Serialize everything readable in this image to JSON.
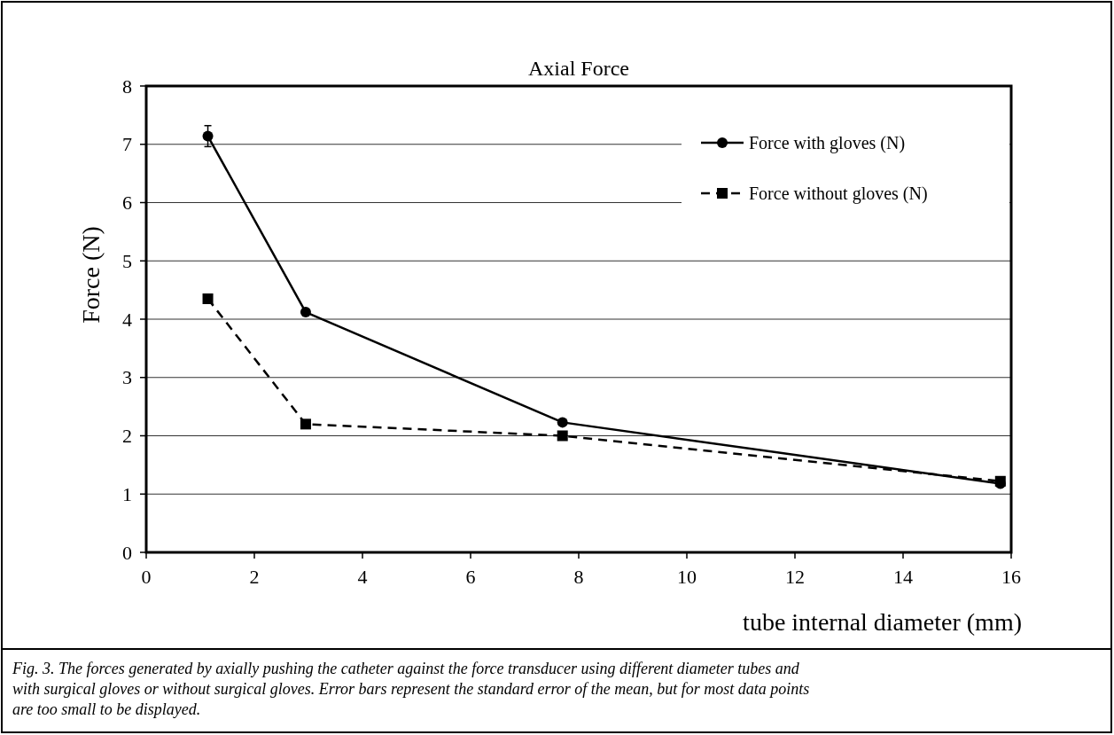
{
  "chart_data": {
    "type": "line",
    "title": "Axial Force",
    "xlabel": "tube internal diameter (mm)",
    "ylabel": "Force (N)",
    "xlim": [
      0,
      16
    ],
    "xticks": [
      0,
      2,
      4,
      6,
      8,
      10,
      12,
      14,
      16
    ],
    "ylim": [
      0,
      8
    ],
    "yticks": [
      0,
      1,
      2,
      3,
      4,
      5,
      6,
      7,
      8
    ],
    "grid": "y",
    "legend": "top right",
    "series": [
      {
        "name": "Force with gloves (N)",
        "color": "#000000",
        "x": [
          1.14,
          2.95,
          7.7,
          15.8
        ],
        "values": [
          7.14,
          4.12,
          2.23,
          1.18
        ],
        "errors": [
          0.18,
          null,
          null,
          null
        ],
        "marker": "circle",
        "line_style": "solid"
      },
      {
        "name": "Force without gloves (N)",
        "color": "#000000",
        "x": [
          1.14,
          2.95,
          7.7,
          15.8
        ],
        "values": [
          4.35,
          2.2,
          2.0,
          1.22
        ],
        "marker": "square",
        "line_style": "dashed"
      }
    ],
    "annotations": [
      "Fig. 3. The forces generated by axially pushing the catheter against the force transducer using different diameter tubes and with surgical gloves or without surgical gloves. Error bars represent the standard error of the mean, but for most data points are too small to be displayed."
    ]
  }
}
